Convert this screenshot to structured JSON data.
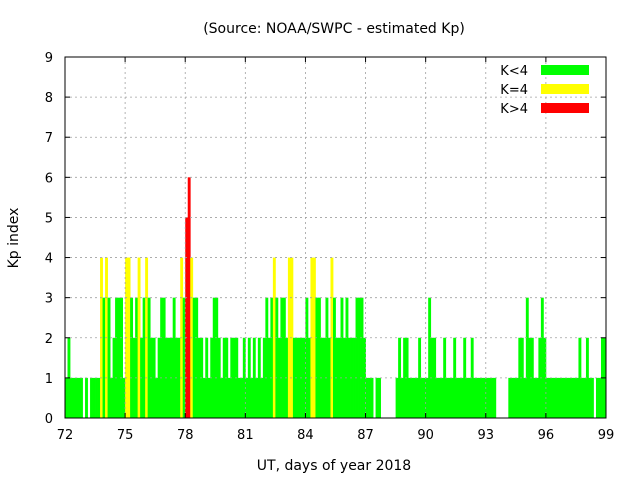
{
  "chart_data": {
    "type": "bar",
    "title": "(Source: NOAA/SWPC - estimated Kp)",
    "xlabel": "UT, days of year 2018",
    "ylabel": "Kp index",
    "xlim": [
      72,
      99
    ],
    "ylim": [
      0,
      9
    ],
    "x_ticks": [
      72,
      75,
      78,
      81,
      84,
      87,
      90,
      93,
      96,
      99
    ],
    "y_ticks": [
      0,
      1,
      2,
      3,
      4,
      5,
      6,
      7,
      8,
      9
    ],
    "bin_width_days": 0.125,
    "grid": true,
    "legend_position": "top-right",
    "legend": [
      {
        "label": "K<4",
        "color": "#00ff00"
      },
      {
        "label": "K=4",
        "color": "#ffff00"
      },
      {
        "label": "K>4",
        "color": "#ff0000"
      }
    ],
    "days": [
      {
        "day": 72,
        "values": [
          1,
          2,
          1,
          1,
          1,
          1,
          1,
          0
        ]
      },
      {
        "day": 73,
        "values": [
          1,
          0,
          1,
          1,
          1,
          1,
          4,
          3
        ]
      },
      {
        "day": 74,
        "values": [
          4,
          3,
          1,
          2,
          3,
          3,
          3,
          1
        ]
      },
      {
        "day": 75,
        "values": [
          4,
          4,
          3,
          2,
          3,
          4,
          2,
          3
        ]
      },
      {
        "day": 76,
        "values": [
          4,
          3,
          2,
          2,
          1,
          2,
          3,
          3
        ]
      },
      {
        "day": 77,
        "values": [
          2,
          2,
          2,
          3,
          2,
          2,
          4,
          3
        ]
      },
      {
        "day": 78,
        "values": [
          5,
          6,
          4,
          3,
          3,
          2,
          2,
          1
        ]
      },
      {
        "day": 79,
        "values": [
          2,
          1,
          2,
          3,
          3,
          2,
          1,
          2
        ]
      },
      {
        "day": 80,
        "values": [
          2,
          1,
          2,
          2,
          2,
          1,
          1,
          2
        ]
      },
      {
        "day": 81,
        "values": [
          1,
          2,
          1,
          2,
          1,
          2,
          1,
          2
        ]
      },
      {
        "day": 82,
        "values": [
          3,
          2,
          3,
          4,
          3,
          2,
          3,
          3
        ]
      },
      {
        "day": 83,
        "values": [
          2,
          4,
          4,
          2,
          2,
          2,
          2,
          2
        ]
      },
      {
        "day": 84,
        "values": [
          3,
          2,
          4,
          4,
          3,
          3,
          2,
          2
        ]
      },
      {
        "day": 85,
        "values": [
          3,
          2,
          4,
          3,
          2,
          2,
          3,
          2
        ]
      },
      {
        "day": 86,
        "values": [
          3,
          2,
          2,
          2,
          3,
          3,
          3,
          2
        ]
      },
      {
        "day": 87,
        "values": [
          1,
          1,
          1,
          0,
          1,
          1,
          0,
          0
        ]
      },
      {
        "day": 88,
        "values": [
          0,
          0,
          0,
          0,
          1,
          2,
          1,
          2
        ]
      },
      {
        "day": 89,
        "values": [
          2,
          1,
          1,
          1,
          1,
          2,
          1,
          1
        ]
      },
      {
        "day": 90,
        "values": [
          1,
          3,
          2,
          2,
          1,
          1,
          1,
          2
        ]
      },
      {
        "day": 91,
        "values": [
          1,
          1,
          1,
          2,
          1,
          1,
          1,
          2
        ]
      },
      {
        "day": 92,
        "values": [
          1,
          1,
          2,
          1,
          1,
          1,
          1,
          1
        ]
      },
      {
        "day": 93,
        "values": [
          1,
          1,
          1,
          1,
          0,
          0,
          0,
          0
        ]
      },
      {
        "day": 94,
        "values": [
          0,
          1,
          1,
          1,
          1,
          2,
          2,
          1
        ]
      },
      {
        "day": 95,
        "values": [
          3,
          2,
          2,
          1,
          1,
          2,
          3,
          2
        ]
      },
      {
        "day": 96,
        "values": [
          1,
          1,
          1,
          1,
          1,
          1,
          1,
          1
        ]
      },
      {
        "day": 97,
        "values": [
          1,
          1,
          1,
          1,
          1,
          2,
          1,
          1
        ]
      },
      {
        "day": 98,
        "values": [
          2,
          1,
          1,
          0,
          1,
          1,
          2,
          2
        ]
      }
    ]
  }
}
